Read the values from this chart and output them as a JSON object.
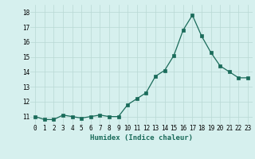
{
  "x": [
    0,
    1,
    2,
    3,
    4,
    5,
    6,
    7,
    8,
    9,
    10,
    11,
    12,
    13,
    14,
    15,
    16,
    17,
    18,
    19,
    20,
    21,
    22,
    23
  ],
  "y": [
    11.0,
    10.8,
    10.8,
    11.1,
    11.0,
    10.9,
    11.0,
    11.1,
    11.0,
    11.0,
    11.8,
    12.2,
    12.6,
    13.7,
    14.1,
    15.1,
    16.8,
    17.8,
    16.4,
    15.3,
    14.4,
    14.0,
    13.6,
    13.6
  ],
  "line_color": "#1a6b5a",
  "marker": "s",
  "marker_size": 2.5,
  "bg_color": "#d6f0ee",
  "grid_color": "#b8d8d4",
  "xlabel": "Humidex (Indice chaleur)",
  "xlim": [
    -0.5,
    23.5
  ],
  "ylim": [
    10.5,
    18.5
  ],
  "yticks": [
    11,
    12,
    13,
    14,
    15,
    16,
    17,
    18
  ],
  "xticks": [
    0,
    1,
    2,
    3,
    4,
    5,
    6,
    7,
    8,
    9,
    10,
    11,
    12,
    13,
    14,
    15,
    16,
    17,
    18,
    19,
    20,
    21,
    22,
    23
  ],
  "tick_fontsize": 5.5,
  "xlabel_fontsize": 6.5
}
